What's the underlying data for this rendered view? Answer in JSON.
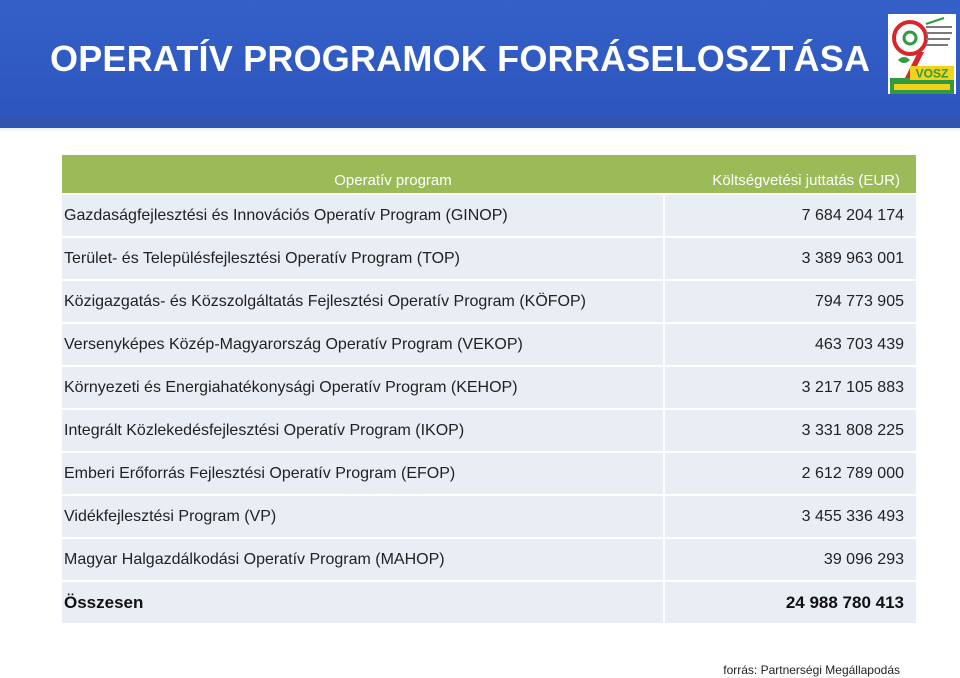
{
  "header": {
    "title": "OPERATÍV PROGRAMOK FORRÁSELOSZTÁSA",
    "logo_text": "VOSZ"
  },
  "table": {
    "headers": [
      "Operatív program",
      "Költségvetési juttatás (EUR)"
    ],
    "rows": [
      {
        "program": "Gazdaságfejlesztési és Innovációs Operatív Program (GINOP)",
        "amount": "7 684 204 174"
      },
      {
        "program": "Terület- és Településfejlesztési Operatív Program (TOP)",
        "amount": "3 389 963 001"
      },
      {
        "program": "Közigazgatás- és Közszolgáltatás Fejlesztési Operatív Program (KÖFOP)",
        "amount": "794 773 905"
      },
      {
        "program": "Versenyképes Közép-Magyarország Operatív Program (VEKOP)",
        "amount": "463 703 439"
      },
      {
        "program": "Környezeti és Energiahatékonysági Operatív Program (KEHOP)",
        "amount": "3 217 105 883"
      },
      {
        "program": "Integrált Közlekedésfejlesztési Operatív Program (IKOP)",
        "amount": "3 331 808 225"
      },
      {
        "program": "Emberi Erőforrás Fejlesztési Operatív Program (EFOP)",
        "amount": "2 612 789 000"
      },
      {
        "program": "Vidékfejlesztési Program (VP)",
        "amount": "3 455 336 493"
      },
      {
        "program": "Magyar Halgazdálkodási Operatív Program (MAHOP)",
        "amount": "39 096 293"
      }
    ],
    "total": {
      "label": "Összesen",
      "amount": "24 988 780 413"
    }
  },
  "source": "forrás: Partnerségi Megállapodás",
  "colors": {
    "banner": "#2c55bc",
    "header_row": "#9bbb59",
    "row_bg": "#e9edf4",
    "logo_red": "#d9262b",
    "logo_green": "#2f9a3e",
    "logo_yellow": "#f2d21b"
  }
}
